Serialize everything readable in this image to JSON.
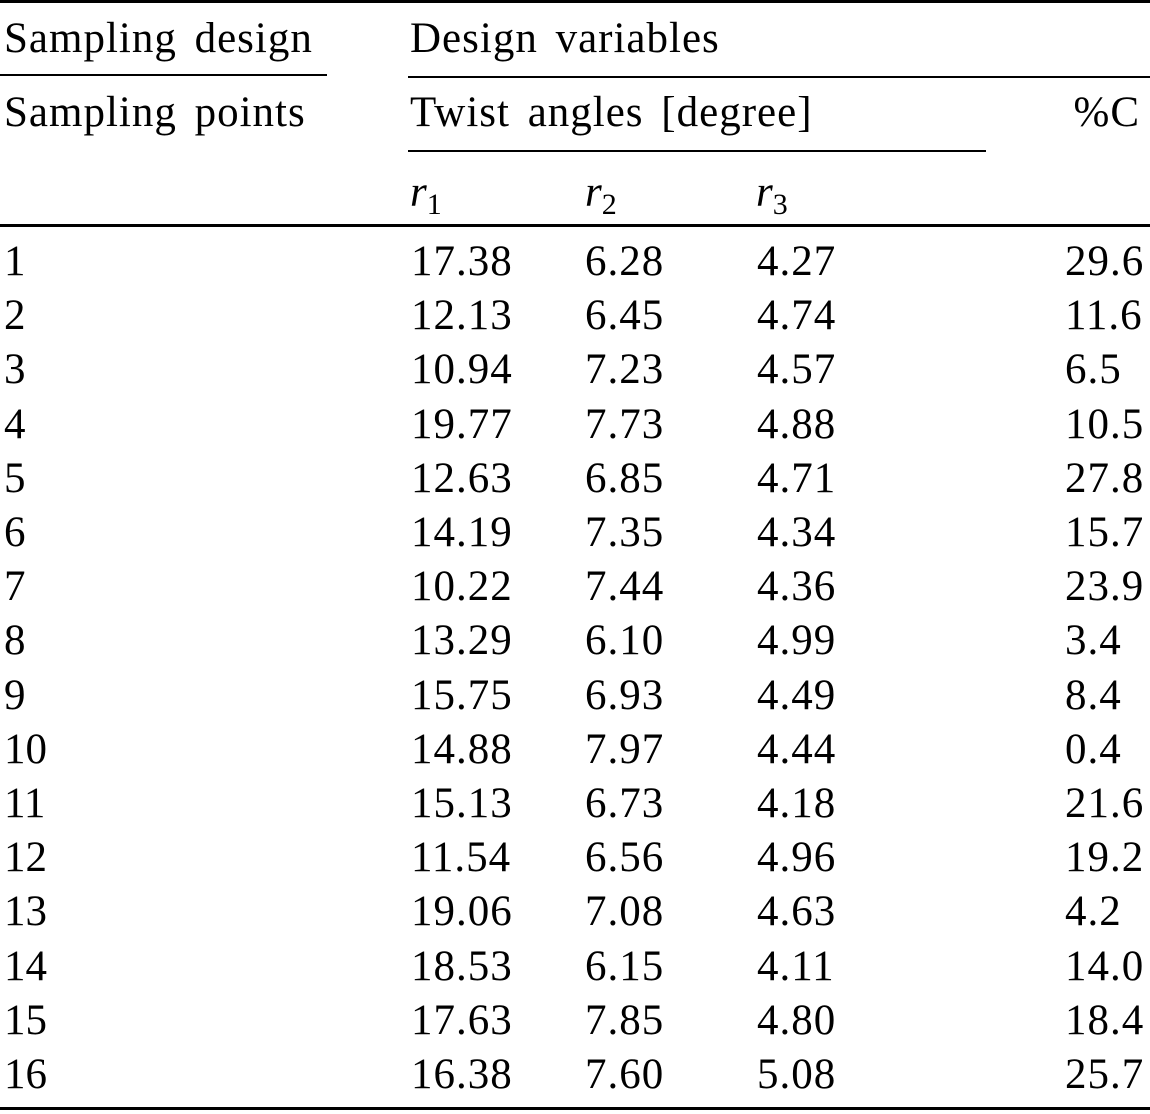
{
  "table": {
    "header": {
      "sampling_design": "Sampling design",
      "design_variables": "Design variables",
      "sampling_points": "Sampling points",
      "twist_angles": "Twist angles [degree]",
      "percent_c": "%C",
      "r1": {
        "letter": "r",
        "sub": "1"
      },
      "r2": {
        "letter": "r",
        "sub": "2"
      },
      "r3": {
        "letter": "r",
        "sub": "3"
      }
    },
    "rows": [
      {
        "point": "1",
        "r1": "17.38",
        "r2": "6.28",
        "r3": "4.27",
        "pc": "29.6"
      },
      {
        "point": "2",
        "r1": "12.13",
        "r2": "6.45",
        "r3": "4.74",
        "pc": "11.6"
      },
      {
        "point": "3",
        "r1": "10.94",
        "r2": "7.23",
        "r3": "4.57",
        "pc": "6.5"
      },
      {
        "point": "4",
        "r1": "19.77",
        "r2": "7.73",
        "r3": "4.88",
        "pc": "10.5"
      },
      {
        "point": "5",
        "r1": "12.63",
        "r2": "6.85",
        "r3": "4.71",
        "pc": "27.8"
      },
      {
        "point": "6",
        "r1": "14.19",
        "r2": "7.35",
        "r3": "4.34",
        "pc": "15.7"
      },
      {
        "point": "7",
        "r1": "10.22",
        "r2": "7.44",
        "r3": "4.36",
        "pc": "23.9"
      },
      {
        "point": "8",
        "r1": "13.29",
        "r2": "6.10",
        "r3": "4.99",
        "pc": "3.4"
      },
      {
        "point": "9",
        "r1": "15.75",
        "r2": "6.93",
        "r3": "4.49",
        "pc": "8.4"
      },
      {
        "point": "10",
        "r1": "14.88",
        "r2": "7.97",
        "r3": "4.44",
        "pc": "0.4"
      },
      {
        "point": "11",
        "r1": "15.13",
        "r2": "6.73",
        "r3": "4.18",
        "pc": "21.6"
      },
      {
        "point": "12",
        "r1": "11.54",
        "r2": "6.56",
        "r3": "4.96",
        "pc": "19.2"
      },
      {
        "point": "13",
        "r1": "19.06",
        "r2": "7.08",
        "r3": "4.63",
        "pc": "4.2"
      },
      {
        "point": "14",
        "r1": "18.53",
        "r2": "6.15",
        "r3": "4.11",
        "pc": "14.0"
      },
      {
        "point": "15",
        "r1": "17.63",
        "r2": "7.85",
        "r3": "4.80",
        "pc": "18.4"
      },
      {
        "point": "16",
        "r1": "16.38",
        "r2": "7.60",
        "r3": "5.08",
        "pc": "25.7"
      }
    ]
  }
}
